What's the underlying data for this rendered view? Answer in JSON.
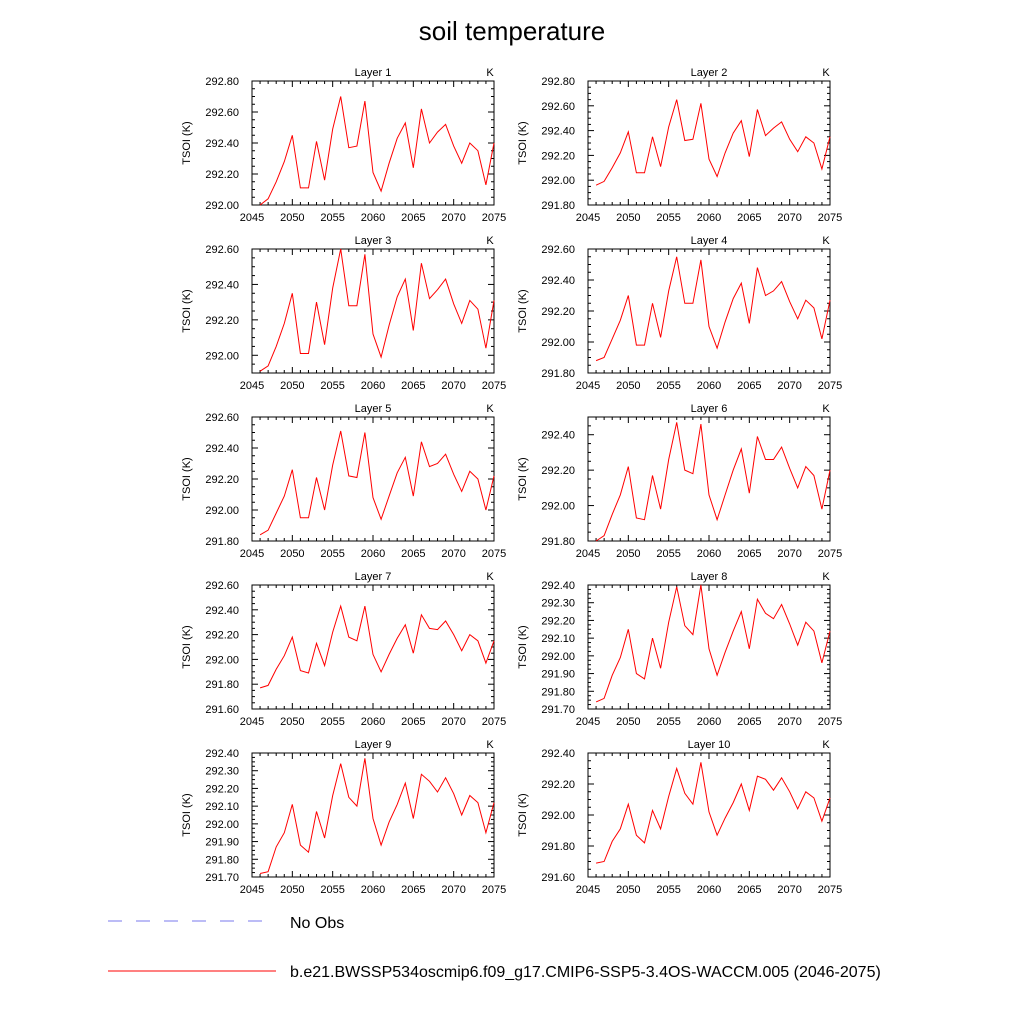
{
  "figure": {
    "title": "soil temperature",
    "legend": [
      {
        "label": "No Obs",
        "color": "#7878ee",
        "style": "dashed"
      },
      {
        "label": "b.e21.BWSSP534oscmip6.f09_g17.CMIP6-SSP5-3.4OS-WACCM.005 (2046-2075)",
        "color": "#ff0000",
        "style": "solid"
      }
    ]
  },
  "chart_data": [
    {
      "type": "line",
      "title": "Layer 1",
      "units": "K",
      "ylabel": "TSOI  (K)",
      "xlim": [
        2045,
        2075
      ],
      "ylim": [
        292.0,
        292.8
      ],
      "xticks": [
        2045,
        2050,
        2055,
        2060,
        2065,
        2070,
        2075
      ],
      "yticks": [
        "292.00",
        "292.20",
        "292.40",
        "292.60",
        "292.80"
      ],
      "series": [
        {
          "name": "b.e21.BWSSP534oscmip6.f09_g17.CMIP6-SSP5-3.4OS-WACCM.005",
          "color": "#ff0000",
          "x": [
            2046,
            2047,
            2048,
            2049,
            2050,
            2051,
            2052,
            2053,
            2054,
            2055,
            2056,
            2057,
            2058,
            2059,
            2060,
            2061,
            2062,
            2063,
            2064,
            2065,
            2066,
            2067,
            2068,
            2069,
            2070,
            2071,
            2072,
            2073,
            2074,
            2075
          ],
          "y": [
            292.0,
            292.04,
            292.15,
            292.28,
            292.45,
            292.11,
            292.11,
            292.41,
            292.16,
            292.49,
            292.7,
            292.37,
            292.38,
            292.67,
            292.21,
            292.09,
            292.27,
            292.43,
            292.53,
            292.24,
            292.62,
            292.4,
            292.47,
            292.52,
            292.38,
            292.27,
            292.4,
            292.35,
            292.13,
            292.4
          ]
        }
      ]
    },
    {
      "type": "line",
      "title": "Layer 2",
      "units": "K",
      "ylabel": "TSOI  (K)",
      "xlim": [
        2045,
        2075
      ],
      "ylim": [
        291.8,
        292.8
      ],
      "xticks": [
        2045,
        2050,
        2055,
        2060,
        2065,
        2070,
        2075
      ],
      "yticks": [
        "291.80",
        "292.00",
        "292.20",
        "292.40",
        "292.60",
        "292.80"
      ],
      "series": [
        {
          "name": "b.e21.BWSSP534oscmip6.f09_g17.CMIP6-SSP5-3.4OS-WACCM.005",
          "color": "#ff0000",
          "x": [
            2046,
            2047,
            2048,
            2049,
            2050,
            2051,
            2052,
            2053,
            2054,
            2055,
            2056,
            2057,
            2058,
            2059,
            2060,
            2061,
            2062,
            2063,
            2064,
            2065,
            2066,
            2067,
            2068,
            2069,
            2070,
            2071,
            2072,
            2073,
            2074,
            2075
          ],
          "y": [
            291.96,
            291.99,
            292.1,
            292.22,
            292.39,
            292.06,
            292.06,
            292.35,
            292.11,
            292.43,
            292.65,
            292.32,
            292.33,
            292.62,
            292.17,
            292.03,
            292.22,
            292.38,
            292.48,
            292.19,
            292.57,
            292.36,
            292.42,
            292.47,
            292.33,
            292.23,
            292.35,
            292.3,
            292.09,
            292.35
          ]
        }
      ]
    },
    {
      "type": "line",
      "title": "Layer 3",
      "units": "K",
      "ylabel": "TSOI  (K)",
      "xlim": [
        2045,
        2075
      ],
      "ylim": [
        291.9,
        292.6
      ],
      "xticks": [
        2045,
        2050,
        2055,
        2060,
        2065,
        2070,
        2075
      ],
      "yticks": [
        "292.00",
        "292.20",
        "292.40",
        "292.60"
      ],
      "series": [
        {
          "name": "b.e21.BWSSP534oscmip6.f09_g17.CMIP6-SSP5-3.4OS-WACCM.005",
          "color": "#ff0000",
          "x": [
            2046,
            2047,
            2048,
            2049,
            2050,
            2051,
            2052,
            2053,
            2054,
            2055,
            2056,
            2057,
            2058,
            2059,
            2060,
            2061,
            2062,
            2063,
            2064,
            2065,
            2066,
            2067,
            2068,
            2069,
            2070,
            2071,
            2072,
            2073,
            2074,
            2075
          ],
          "y": [
            291.91,
            291.94,
            292.05,
            292.18,
            292.35,
            292.01,
            292.01,
            292.3,
            292.06,
            292.38,
            292.6,
            292.28,
            292.28,
            292.57,
            292.12,
            291.99,
            292.17,
            292.33,
            292.43,
            292.14,
            292.52,
            292.32,
            292.37,
            292.43,
            292.29,
            292.18,
            292.31,
            292.26,
            292.04,
            292.31
          ]
        }
      ]
    },
    {
      "type": "line",
      "title": "Layer 4",
      "units": "K",
      "ylabel": "TSOI  (K)",
      "xlim": [
        2045,
        2075
      ],
      "ylim": [
        291.8,
        292.6
      ],
      "xticks": [
        2045,
        2050,
        2055,
        2060,
        2065,
        2070,
        2075
      ],
      "yticks": [
        "291.80",
        "292.00",
        "292.20",
        "292.40",
        "292.60"
      ],
      "series": [
        {
          "name": "b.e21.BWSSP534oscmip6.f09_g17.CMIP6-SSP5-3.4OS-WACCM.005",
          "color": "#ff0000",
          "x": [
            2046,
            2047,
            2048,
            2049,
            2050,
            2051,
            2052,
            2053,
            2054,
            2055,
            2056,
            2057,
            2058,
            2059,
            2060,
            2061,
            2062,
            2063,
            2064,
            2065,
            2066,
            2067,
            2068,
            2069,
            2070,
            2071,
            2072,
            2073,
            2074,
            2075
          ],
          "y": [
            291.88,
            291.9,
            292.02,
            292.14,
            292.3,
            291.98,
            291.98,
            292.25,
            292.03,
            292.33,
            292.55,
            292.25,
            292.25,
            292.53,
            292.1,
            291.96,
            292.13,
            292.28,
            292.38,
            292.12,
            292.48,
            292.3,
            292.33,
            292.39,
            292.26,
            292.15,
            292.27,
            292.22,
            292.02,
            292.27
          ]
        }
      ]
    },
    {
      "type": "line",
      "title": "Layer 5",
      "units": "K",
      "ylabel": "TSOI  (K)",
      "xlim": [
        2045,
        2075
      ],
      "ylim": [
        291.8,
        292.6
      ],
      "xticks": [
        2045,
        2050,
        2055,
        2060,
        2065,
        2070,
        2075
      ],
      "yticks": [
        "291.80",
        "292.00",
        "292.20",
        "292.40",
        "292.60"
      ],
      "series": [
        {
          "name": "b.e21.BWSSP534oscmip6.f09_g17.CMIP6-SSP5-3.4OS-WACCM.005",
          "color": "#ff0000",
          "x": [
            2046,
            2047,
            2048,
            2049,
            2050,
            2051,
            2052,
            2053,
            2054,
            2055,
            2056,
            2057,
            2058,
            2059,
            2060,
            2061,
            2062,
            2063,
            2064,
            2065,
            2066,
            2067,
            2068,
            2069,
            2070,
            2071,
            2072,
            2073,
            2074,
            2075
          ],
          "y": [
            291.84,
            291.87,
            291.98,
            292.09,
            292.26,
            291.95,
            291.95,
            292.21,
            292.0,
            292.29,
            292.51,
            292.22,
            292.21,
            292.5,
            292.08,
            291.94,
            292.09,
            292.24,
            292.34,
            292.09,
            292.44,
            292.28,
            292.3,
            292.36,
            292.23,
            292.12,
            292.25,
            292.2,
            292.0,
            292.22
          ]
        }
      ]
    },
    {
      "type": "line",
      "title": "Layer 6",
      "units": "K",
      "ylabel": "TSOI  (K)",
      "xlim": [
        2045,
        2075
      ],
      "ylim": [
        291.8,
        292.5
      ],
      "xticks": [
        2045,
        2050,
        2055,
        2060,
        2065,
        2070,
        2075
      ],
      "yticks": [
        "291.80",
        "292.00",
        "292.20",
        "292.40"
      ],
      "series": [
        {
          "name": "b.e21.BWSSP534oscmip6.f09_g17.CMIP6-SSP5-3.4OS-WACCM.005",
          "color": "#ff0000",
          "x": [
            2046,
            2047,
            2048,
            2049,
            2050,
            2051,
            2052,
            2053,
            2054,
            2055,
            2056,
            2057,
            2058,
            2059,
            2060,
            2061,
            2062,
            2063,
            2064,
            2065,
            2066,
            2067,
            2068,
            2069,
            2070,
            2071,
            2072,
            2073,
            2074,
            2075
          ],
          "y": [
            291.8,
            291.83,
            291.95,
            292.06,
            292.22,
            291.93,
            291.92,
            292.17,
            291.98,
            292.26,
            292.47,
            292.2,
            292.18,
            292.46,
            292.06,
            291.92,
            292.06,
            292.2,
            292.32,
            292.07,
            292.39,
            292.26,
            292.26,
            292.33,
            292.21,
            292.1,
            292.22,
            292.17,
            291.98,
            292.2
          ]
        }
      ]
    },
    {
      "type": "line",
      "title": "Layer 7",
      "units": "K",
      "ylabel": "TSOI  (K)",
      "xlim": [
        2045,
        2075
      ],
      "ylim": [
        291.6,
        292.6
      ],
      "xticks": [
        2045,
        2050,
        2055,
        2060,
        2065,
        2070,
        2075
      ],
      "yticks": [
        "291.60",
        "291.80",
        "292.00",
        "292.20",
        "292.40",
        "292.60"
      ],
      "series": [
        {
          "name": "b.e21.BWSSP534oscmip6.f09_g17.CMIP6-SSP5-3.4OS-WACCM.005",
          "color": "#ff0000",
          "x": [
            2046,
            2047,
            2048,
            2049,
            2050,
            2051,
            2052,
            2053,
            2054,
            2055,
            2056,
            2057,
            2058,
            2059,
            2060,
            2061,
            2062,
            2063,
            2064,
            2065,
            2066,
            2067,
            2068,
            2069,
            2070,
            2071,
            2072,
            2073,
            2074,
            2075
          ],
          "y": [
            291.77,
            291.79,
            291.92,
            292.03,
            292.18,
            291.91,
            291.89,
            292.13,
            291.95,
            292.22,
            292.43,
            292.18,
            292.15,
            292.43,
            292.04,
            291.9,
            292.04,
            292.17,
            292.28,
            292.05,
            292.36,
            292.25,
            292.24,
            292.31,
            292.2,
            292.07,
            292.2,
            292.15,
            291.97,
            292.15
          ]
        }
      ]
    },
    {
      "type": "line",
      "title": "Layer 8",
      "units": "K",
      "ylabel": "TSOI  (K)",
      "xlim": [
        2045,
        2075
      ],
      "ylim": [
        291.7,
        292.4
      ],
      "xticks": [
        2045,
        2050,
        2055,
        2060,
        2065,
        2070,
        2075
      ],
      "yticks": [
        "291.70",
        "291.80",
        "291.90",
        "292.00",
        "292.10",
        "292.20",
        "292.30",
        "292.40"
      ],
      "series": [
        {
          "name": "b.e21.BWSSP534oscmip6.f09_g17.CMIP6-SSP5-3.4OS-WACCM.005",
          "color": "#ff0000",
          "x": [
            2046,
            2047,
            2048,
            2049,
            2050,
            2051,
            2052,
            2053,
            2054,
            2055,
            2056,
            2057,
            2058,
            2059,
            2060,
            2061,
            2062,
            2063,
            2064,
            2065,
            2066,
            2067,
            2068,
            2069,
            2070,
            2071,
            2072,
            2073,
            2074,
            2075
          ],
          "y": [
            291.74,
            291.76,
            291.89,
            291.99,
            292.15,
            291.9,
            291.87,
            292.1,
            291.93,
            292.19,
            292.39,
            292.17,
            292.12,
            292.4,
            292.04,
            291.89,
            292.02,
            292.14,
            292.25,
            292.04,
            292.32,
            292.24,
            292.21,
            292.29,
            292.18,
            292.06,
            292.19,
            292.14,
            291.96,
            292.14
          ]
        }
      ]
    },
    {
      "type": "line",
      "title": "Layer 9",
      "units": "K",
      "ylabel": "TSOI  (K)",
      "xlim": [
        2045,
        2075
      ],
      "ylim": [
        291.7,
        292.4
      ],
      "xticks": [
        2045,
        2050,
        2055,
        2060,
        2065,
        2070,
        2075
      ],
      "yticks": [
        "291.70",
        "291.80",
        "291.90",
        "292.00",
        "292.10",
        "292.20",
        "292.30",
        "292.40"
      ],
      "series": [
        {
          "name": "b.e21.BWSSP534oscmip6.f09_g17.CMIP6-SSP5-3.4OS-WACCM.005",
          "color": "#ff0000",
          "x": [
            2046,
            2047,
            2048,
            2049,
            2050,
            2051,
            2052,
            2053,
            2054,
            2055,
            2056,
            2057,
            2058,
            2059,
            2060,
            2061,
            2062,
            2063,
            2064,
            2065,
            2066,
            2067,
            2068,
            2069,
            2070,
            2071,
            2072,
            2073,
            2074,
            2075
          ],
          "y": [
            291.72,
            291.73,
            291.87,
            291.95,
            292.11,
            291.88,
            291.84,
            292.07,
            291.92,
            292.16,
            292.34,
            292.15,
            292.1,
            292.37,
            292.03,
            291.88,
            292.01,
            292.11,
            292.23,
            292.03,
            292.28,
            292.24,
            292.18,
            292.26,
            292.17,
            292.05,
            292.16,
            292.12,
            291.95,
            292.12
          ]
        }
      ]
    },
    {
      "type": "line",
      "title": "Layer 10",
      "units": "K",
      "ylabel": "TSOI  (K)",
      "xlim": [
        2045,
        2075
      ],
      "ylim": [
        291.6,
        292.4
      ],
      "xticks": [
        2045,
        2050,
        2055,
        2060,
        2065,
        2070,
        2075
      ],
      "yticks": [
        "291.60",
        "291.80",
        "292.00",
        "292.20",
        "292.40"
      ],
      "series": [
        {
          "name": "b.e21.BWSSP534oscmip6.f09_g17.CMIP6-SSP5-3.4OS-WACCM.005",
          "color": "#ff0000",
          "x": [
            2046,
            2047,
            2048,
            2049,
            2050,
            2051,
            2052,
            2053,
            2054,
            2055,
            2056,
            2057,
            2058,
            2059,
            2060,
            2061,
            2062,
            2063,
            2064,
            2065,
            2066,
            2067,
            2068,
            2069,
            2070,
            2071,
            2072,
            2073,
            2074,
            2075
          ],
          "y": [
            291.69,
            291.7,
            291.83,
            291.91,
            292.07,
            291.87,
            291.82,
            292.03,
            291.91,
            292.12,
            292.3,
            292.14,
            292.07,
            292.34,
            292.02,
            291.87,
            291.98,
            292.08,
            292.2,
            292.03,
            292.25,
            292.23,
            292.16,
            292.24,
            292.15,
            292.04,
            292.15,
            292.11,
            291.96,
            292.11
          ]
        }
      ]
    }
  ]
}
